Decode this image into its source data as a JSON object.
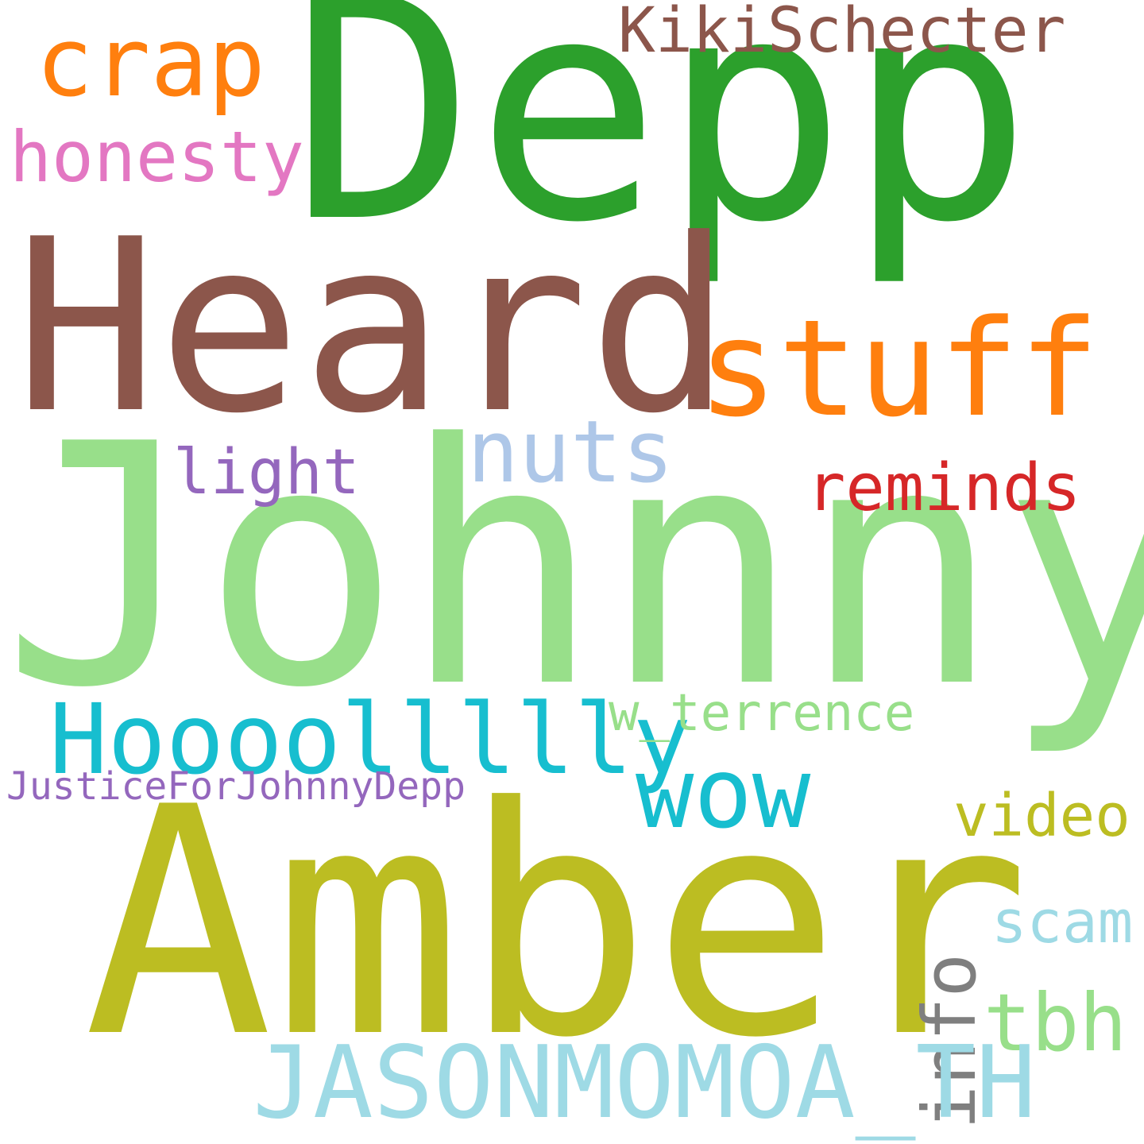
{
  "words": {
    "depp": {
      "text": "Depp",
      "color": "#2ca02c"
    },
    "heard": {
      "text": "Heard",
      "color": "#8c564b"
    },
    "johnny": {
      "text": "Johnny",
      "color": "#98df8a"
    },
    "amber": {
      "text": "Amber",
      "color": "#bcbd22"
    },
    "stuff": {
      "text": "stuff",
      "color": "#ff7f0e"
    },
    "crap": {
      "text": "crap",
      "color": "#ff7f0e"
    },
    "kiki": {
      "text": "KikiSchecter",
      "color": "#8c564b"
    },
    "honesty": {
      "text": "honesty",
      "color": "#e377c2"
    },
    "nuts": {
      "text": "nuts",
      "color": "#aec7e8"
    },
    "light": {
      "text": "light",
      "color": "#9467bd"
    },
    "reminds": {
      "text": "reminds",
      "color": "#d62728"
    },
    "hooo": {
      "text": "Hoooollllly",
      "color": "#17becf"
    },
    "wow": {
      "text": "wow",
      "color": "#17becf"
    },
    "terrence": {
      "text": "w_terrence",
      "color": "#98df8a"
    },
    "justice": {
      "text": "JusticeForJohnnyDepp",
      "color": "#9467bd"
    },
    "video": {
      "text": "video",
      "color": "#bcbd22"
    },
    "scam": {
      "text": "scam",
      "color": "#9edae5"
    },
    "tbh": {
      "text": "tbh",
      "color": "#98df8a"
    },
    "info": {
      "text": "info",
      "color": "#7f7f7f"
    },
    "jason": {
      "text": "JASONMOMOA_TH",
      "color": "#9edae5"
    }
  }
}
